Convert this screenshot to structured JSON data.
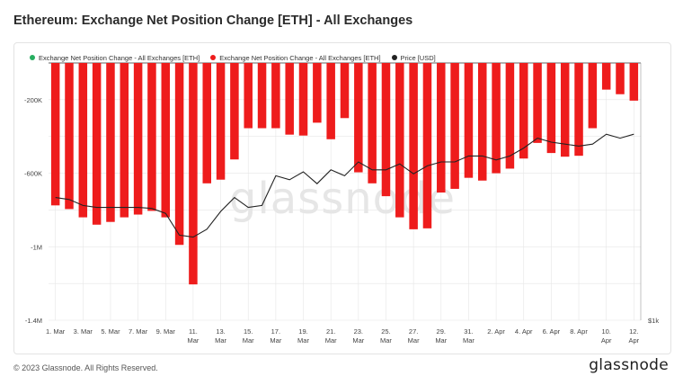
{
  "title": "Ethereum: Exchange Net Position Change [ETH] - All Exchanges",
  "legend": [
    {
      "label": "Exchange Net Position Change - All Exchanges [ETH]",
      "color": "#27ae60"
    },
    {
      "label": "Exchange Net Position Change - All Exchanges [ETH]",
      "color": "#ee1c1c"
    },
    {
      "label": "Price [USD]",
      "color": "#222222"
    }
  ],
  "watermark": "glassnode",
  "footer": "© 2023 Glassnode. All Rights Reserved.",
  "brand": "glassnode",
  "colors": {
    "bar": "#ee1c1c",
    "price_line": "#222222",
    "grid": "#e6e6e6"
  },
  "chart_data": {
    "type": "bar",
    "title": "Ethereum: Exchange Net Position Change [ETH] - All Exchanges",
    "y_left_ticks": [
      {
        "value": -200000,
        "label": "-200K"
      },
      {
        "value": -600000,
        "label": "-600K"
      },
      {
        "value": -1000000,
        "label": "-1M"
      },
      {
        "value": -1400000,
        "label": "-1.4M"
      }
    ],
    "y_right_ticks": [
      {
        "value": 1000,
        "label": "$1k"
      }
    ],
    "ylim": [
      -1400000,
      0
    ],
    "x_ticks": [
      [
        "1. Mar"
      ],
      [
        "3. Mar"
      ],
      [
        "5. Mar"
      ],
      [
        "7. Mar"
      ],
      [
        "9. Mar"
      ],
      [
        "11.",
        "Mar"
      ],
      [
        "13.",
        "Mar"
      ],
      [
        "15.",
        "Mar"
      ],
      [
        "17.",
        "Mar"
      ],
      [
        "19.",
        "Mar"
      ],
      [
        "21.",
        "Mar"
      ],
      [
        "23.",
        "Mar"
      ],
      [
        "25.",
        "Mar"
      ],
      [
        "27.",
        "Mar"
      ],
      [
        "29.",
        "Mar"
      ],
      [
        "31.",
        "Mar"
      ],
      [
        "2. Apr"
      ],
      [
        "4. Apr"
      ],
      [
        "6. Apr"
      ],
      [
        "8. Apr"
      ],
      [
        "10.",
        "Apr"
      ],
      [
        "12.",
        "Apr"
      ]
    ],
    "dates": [
      "1. Mar",
      "2. Mar",
      "3. Mar",
      "4. Mar",
      "5. Mar",
      "6. Mar",
      "7. Mar",
      "8. Mar",
      "9. Mar",
      "10. Mar",
      "11. Mar",
      "12. Mar",
      "13. Mar",
      "14. Mar",
      "15. Mar",
      "16. Mar",
      "17. Mar",
      "18. Mar",
      "19. Mar",
      "20. Mar",
      "21. Mar",
      "22. Mar",
      "23. Mar",
      "24. Mar",
      "25. Mar",
      "26. Mar",
      "27. Mar",
      "28. Mar",
      "29. Mar",
      "30. Mar",
      "31. Mar",
      "1. Apr",
      "2. Apr",
      "3. Apr",
      "4. Apr",
      "5. Apr",
      "6. Apr",
      "7. Apr",
      "8. Apr",
      "9. Apr",
      "10. Apr",
      "11. Apr",
      "12. Apr"
    ],
    "series": [
      {
        "values": [
          -775000,
          -795000,
          -840000,
          -880000,
          -865000,
          -840000,
          -825000,
          -805000,
          -840000,
          -990000,
          -1205000,
          -655000,
          -635000,
          -525000,
          -355000,
          -355000,
          -355000,
          -390000,
          -395000,
          -325000,
          -415000,
          -300000,
          -595000,
          -655000,
          -725000,
          -840000,
          -905000,
          -900000,
          -705000,
          -685000,
          -625000,
          -640000,
          -600000,
          -575000,
          -520000,
          -435000,
          -490000,
          -510000,
          -505000,
          -355000,
          -145000,
          -170000,
          -205000
        ]
      },
      {
        "values": [
          1620,
          1610,
          1580,
          1570,
          1570,
          1570,
          1570,
          1565,
          1540,
          1430,
          1420,
          1460,
          1550,
          1620,
          1570,
          1580,
          1730,
          1710,
          1750,
          1690,
          1760,
          1730,
          1800,
          1760,
          1760,
          1790,
          1740,
          1780,
          1800,
          1800,
          1830,
          1830,
          1810,
          1830,
          1870,
          1920,
          1900,
          1890,
          1880,
          1890,
          1940,
          1920,
          1940
        ]
      }
    ]
  }
}
